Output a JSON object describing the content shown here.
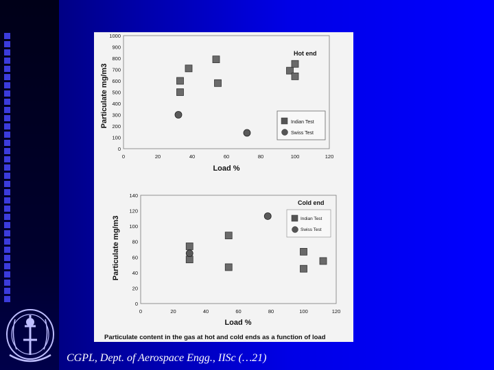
{
  "footer": "CGPL, Dept. of Aerospace Engg., IISc (…21)",
  "colors": {
    "background": "#0000ff",
    "bar_squares": "#3b3bdc",
    "panel": "#f3f3f3",
    "marker": "#555555"
  },
  "caption": "Particulate content in the gas at hot and cold ends as a function of load",
  "chart_data": [
    {
      "type": "scatter",
      "title": "Hot end",
      "xlabel": "Load %",
      "ylabel": "Particulate mg/m3",
      "xlim": [
        0,
        120
      ],
      "ylim": [
        0,
        1000
      ],
      "xticks": [
        "0",
        "20",
        "40",
        "60",
        "80",
        "100",
        "120"
      ],
      "yticks": [
        "0",
        "100",
        "200",
        "300",
        "400",
        "500",
        "600",
        "700",
        "800",
        "900",
        "1000"
      ],
      "legend": {
        "position": "right",
        "entries": [
          "Indian Test",
          "Swiss Test"
        ]
      },
      "series": [
        {
          "name": "Indian Test",
          "marker": "square",
          "points": [
            [
              33,
              500
            ],
            [
              33,
              600
            ],
            [
              38,
              710
            ],
            [
              54,
              790
            ],
            [
              55,
              580
            ],
            [
              97,
              690
            ],
            [
              100,
              750
            ],
            [
              100,
              640
            ]
          ]
        },
        {
          "name": "Swiss Test",
          "marker": "circle",
          "points": [
            [
              32,
              300
            ],
            [
              72,
              140
            ]
          ]
        }
      ]
    },
    {
      "type": "scatter",
      "title": "Cold end",
      "xlabel": "Load %",
      "ylabel": "Particulate mg/m3",
      "xlim": [
        0,
        120
      ],
      "ylim": [
        0,
        140
      ],
      "xticks": [
        "0",
        "20",
        "40",
        "60",
        "80",
        "100",
        "120"
      ],
      "yticks": [
        "0",
        "20",
        "40",
        "60",
        "80",
        "100",
        "120",
        "140"
      ],
      "legend": {
        "position": "top-right",
        "entries": [
          "Indian Test",
          "Swiss Test"
        ]
      },
      "series": [
        {
          "name": "Indian Test",
          "marker": "square",
          "points": [
            [
              30,
              74
            ],
            [
              30,
              57
            ],
            [
              54,
              88
            ],
            [
              54,
              47
            ],
            [
              100,
              67
            ],
            [
              100,
              45
            ],
            [
              112,
              55
            ]
          ]
        },
        {
          "name": "Swiss Test",
          "marker": "circle",
          "points": [
            [
              30,
              65
            ],
            [
              78,
              113
            ]
          ]
        }
      ]
    }
  ]
}
